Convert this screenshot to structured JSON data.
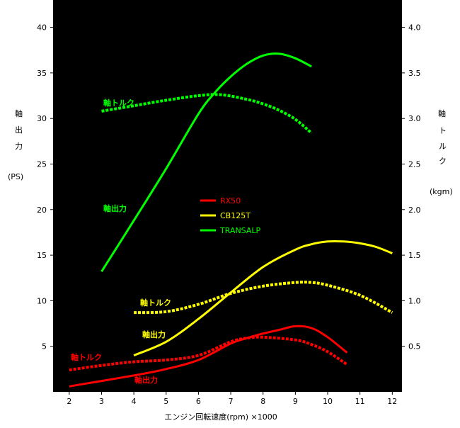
{
  "chart_data": {
    "type": "line",
    "xlabel": "エンジン回転速度(rpm) ×1000",
    "left_axis": {
      "label_chars": [
        "軸",
        "出",
        "力"
      ],
      "unit": "(PS)",
      "ylim": [
        0,
        43
      ]
    },
    "right_axis": {
      "label_chars": [
        "軸",
        "ト",
        "ル",
        "ク"
      ],
      "unit": "(kgm)",
      "ylim": [
        0,
        4.3
      ]
    },
    "xlim": [
      1.5,
      12.3
    ],
    "x_ticks": [
      "2",
      "3",
      "4",
      "5",
      "6",
      "7",
      "8",
      "9",
      "10",
      "11",
      "12"
    ],
    "y_ticks_left": [
      "5",
      "10",
      "15",
      "20",
      "25",
      "30",
      "35",
      "40"
    ],
    "y_ticks_right": [
      "0.5",
      "1.0",
      "1.5",
      "2.0",
      "2.5",
      "3.0",
      "3.5",
      "4.0"
    ],
    "legend": [
      {
        "name": "RX50",
        "color": "#ff0000"
      },
      {
        "name": "CB125T",
        "color": "#ffff00"
      },
      {
        "name": "TRANSALP",
        "color": "#00ff00"
      }
    ],
    "annotations": [
      {
        "id": "transalp-torque",
        "text": "軸トルク",
        "color": "#00ff00"
      },
      {
        "id": "transalp-power",
        "text": "軸出力",
        "color": "#00ff00"
      },
      {
        "id": "cb125t-torque",
        "text": "軸トルク",
        "color": "#ffff00"
      },
      {
        "id": "cb125t-power",
        "text": "軸出力",
        "color": "#ffff00"
      },
      {
        "id": "rx50-torque",
        "text": "軸トルク",
        "color": "#ff0000"
      },
      {
        "id": "rx50-power",
        "text": "軸出力",
        "color": "#ff0000"
      }
    ],
    "series": [
      {
        "name": "TRANSALP",
        "kind": "power",
        "axis": "left",
        "color": "#00ff00",
        "dashed": false,
        "x": [
          3,
          4,
          5,
          6,
          6.5,
          7,
          7.5,
          8,
          8.5,
          9,
          9.5
        ],
        "y": [
          13.2,
          18.8,
          24.5,
          30.5,
          32.8,
          34.6,
          36.0,
          36.9,
          37.1,
          36.6,
          35.7
        ]
      },
      {
        "name": "TRANSALP",
        "kind": "torque",
        "axis": "right",
        "color": "#00ff00",
        "dashed": true,
        "x": [
          3,
          4,
          5,
          6,
          6.7,
          7.5,
          8,
          8.5,
          9,
          9.5
        ],
        "y": [
          3.08,
          3.14,
          3.2,
          3.25,
          3.26,
          3.21,
          3.16,
          3.09,
          2.99,
          2.84
        ]
      },
      {
        "name": "CB125T",
        "kind": "power",
        "axis": "left",
        "color": "#ffff00",
        "dashed": false,
        "x": [
          4,
          5,
          6,
          7,
          8,
          9,
          9.5,
          10,
          10.5,
          11,
          11.5,
          12
        ],
        "y": [
          4.0,
          5.5,
          8.0,
          10.9,
          13.7,
          15.6,
          16.2,
          16.5,
          16.5,
          16.3,
          15.9,
          15.2
        ]
      },
      {
        "name": "CB125T",
        "kind": "torque",
        "axis": "right",
        "color": "#ffff00",
        "dashed": true,
        "x": [
          4,
          5,
          6,
          7,
          8,
          9,
          9.5,
          10,
          11,
          12
        ],
        "y": [
          0.87,
          0.88,
          0.96,
          1.08,
          1.16,
          1.2,
          1.2,
          1.17,
          1.06,
          0.87
        ]
      },
      {
        "name": "RX50",
        "kind": "power",
        "axis": "left",
        "color": "#ff0000",
        "dashed": false,
        "x": [
          2,
          3,
          4,
          5,
          6,
          7,
          7.5,
          8,
          8.5,
          9,
          9.5,
          10,
          10.6
        ],
        "y": [
          0.6,
          1.2,
          1.8,
          2.5,
          3.5,
          5.3,
          5.9,
          6.4,
          6.8,
          7.2,
          7.0,
          6.0,
          4.3
        ]
      },
      {
        "name": "RX50",
        "kind": "torque",
        "axis": "right",
        "color": "#ff0000",
        "dashed": true,
        "x": [
          2,
          3,
          4,
          5,
          6,
          7,
          7.5,
          8,
          9,
          9.5,
          10,
          10.6
        ],
        "y": [
          0.24,
          0.29,
          0.33,
          0.35,
          0.4,
          0.55,
          0.59,
          0.6,
          0.57,
          0.52,
          0.44,
          0.3
        ]
      }
    ]
  }
}
